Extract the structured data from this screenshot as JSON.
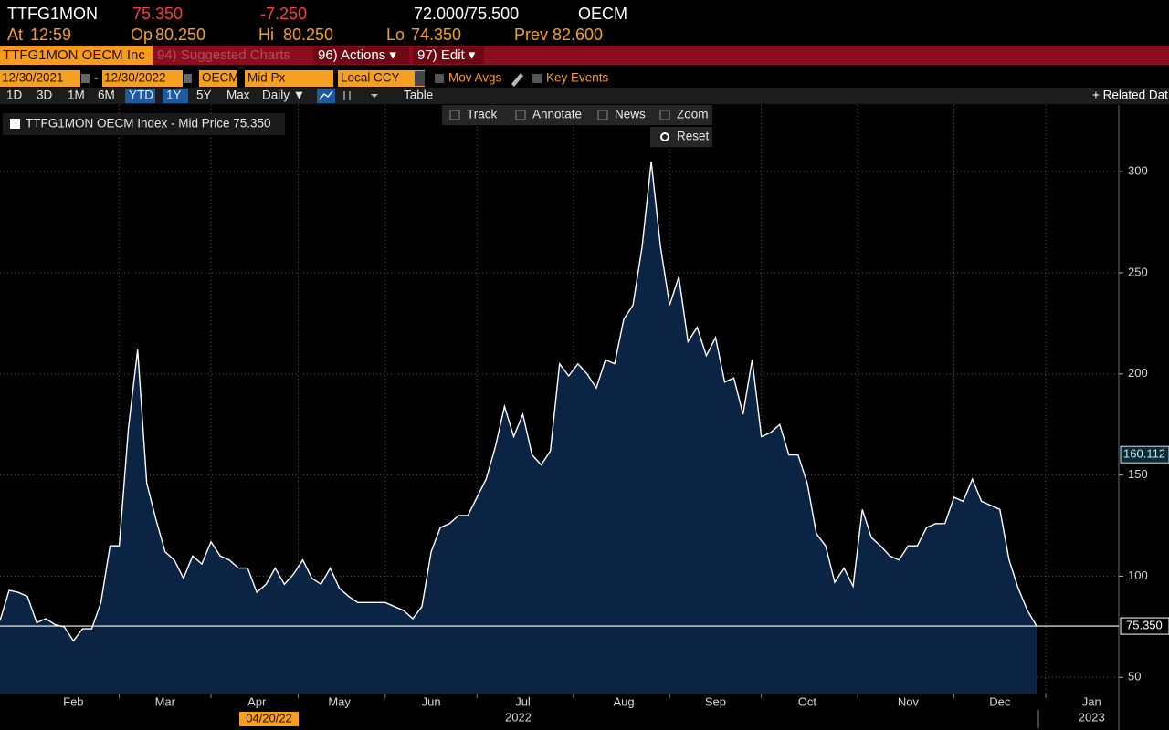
{
  "header": {
    "ticker": "TTFG1MON",
    "last": "75.350",
    "change": "-7.250",
    "bid_ask": "72.000/75.500",
    "source": "OECM",
    "at_label": "At",
    "time": "12:59",
    "open_label": "Op",
    "open": "80.250",
    "high_label": "Hi",
    "high": "80.250",
    "low_label": "Lo",
    "low": "74.350",
    "prev_label": "Prev",
    "prev": "82.600"
  },
  "menu": {
    "security": "TTFG1MON OECM Inc",
    "suggested": "94) Suggested Charts",
    "actions": "96) Actions ▾",
    "edit": "97) Edit ▾"
  },
  "settings": {
    "start": "12/30/2021",
    "sep": "-",
    "end": "12/30/2022",
    "source": "OECM",
    "field": "Mid Px",
    "currency": "Local CCY",
    "mov_avgs": "Mov Avgs",
    "key_events": "Key Events"
  },
  "periods": [
    "1D",
    "3D",
    "1M",
    "6M",
    "YTD",
    "1Y",
    "5Y",
    "Max"
  ],
  "frequency": "Daily ▼",
  "table": "Table",
  "related": "+ Related Dat",
  "tools": [
    "Track",
    "Annotate",
    "News",
    "Zoom"
  ],
  "reset": "Reset",
  "chart_data": {
    "type": "area",
    "categories": [
      null,
      null,
      null,
      null,
      null,
      null,
      null,
      null,
      "Feb",
      null,
      null,
      null,
      null,
      null,
      null,
      null,
      null,
      null,
      "Mar",
      null,
      null,
      null,
      null,
      null,
      null,
      null,
      null,
      null,
      "Apr",
      null,
      null,
      null,
      null,
      null,
      null,
      null,
      null,
      "May",
      null,
      null,
      null,
      null,
      null,
      null,
      null,
      null,
      null,
      "Jun",
      null,
      null,
      null,
      null,
      null,
      null,
      null,
      null,
      null,
      "Jul",
      null,
      null,
      null,
      null,
      null,
      null,
      null,
      null,
      null,
      null,
      "Aug",
      null,
      null,
      null,
      null,
      null,
      null,
      null,
      null,
      null,
      "Sep",
      null,
      null,
      null,
      null,
      null,
      null,
      null,
      null,
      null,
      "Oct",
      null,
      null,
      null,
      null,
      null,
      null,
      null,
      null,
      null,
      null,
      "Nov",
      null,
      null,
      null,
      null,
      null,
      null,
      null,
      null,
      null,
      "Dec",
      null,
      null,
      null,
      null,
      null,
      null,
      null,
      null,
      null,
      "Jan"
    ],
    "series": [
      {
        "name": "TTFG1MON OECM Index - Mid Price 75.350",
        "color": "#ffffff",
        "values": [
          78,
          93,
          92,
          90,
          77,
          79,
          76,
          75,
          68,
          74,
          74,
          87,
          115,
          115,
          173,
          212,
          146,
          128,
          112,
          108,
          99,
          110,
          106,
          117,
          110,
          108,
          104,
          104,
          92,
          96,
          104,
          96,
          101,
          108,
          99,
          96,
          104,
          94,
          90,
          87,
          87,
          87,
          87,
          85,
          83,
          79,
          85,
          112,
          124,
          126,
          130,
          130,
          139,
          148,
          164,
          184,
          169,
          180,
          160,
          155,
          162,
          205,
          199,
          205,
          200,
          193,
          207,
          205,
          227,
          234,
          263,
          305,
          263,
          234,
          248,
          216,
          223,
          209,
          218,
          196,
          198,
          180,
          207,
          169,
          171,
          175,
          160,
          160,
          146,
          121,
          115,
          97,
          104,
          95,
          133,
          119,
          115,
          110,
          108,
          115,
          115,
          124,
          126,
          126,
          139,
          137,
          148,
          137,
          135,
          133,
          108,
          94,
          83,
          75.35,
          null,
          null,
          null,
          null,
          null,
          null
        ]
      }
    ],
    "ylim": [
      42,
      333
    ],
    "yticks": [
      50,
      100,
      150,
      200,
      250,
      300
    ],
    "grid": true,
    "year_labels": [
      "2022",
      "2023"
    ],
    "crosshair_date": "04/20/22",
    "crosshair": {
      "value": 160.112,
      "label": "160.112"
    },
    "last_label": {
      "value": 75.35,
      "label": "75.350"
    }
  }
}
